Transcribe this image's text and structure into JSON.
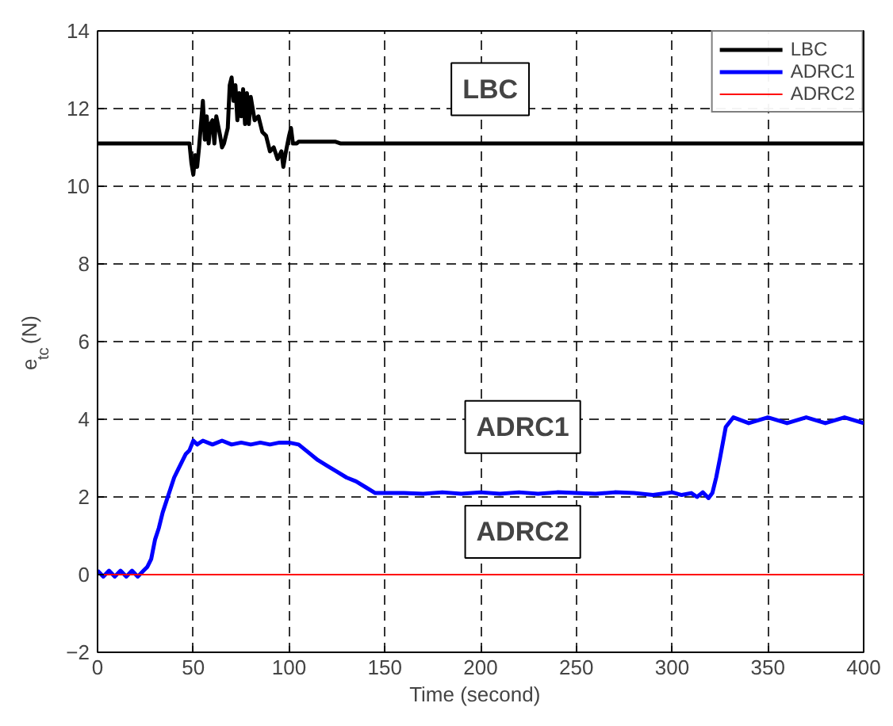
{
  "chart_data": {
    "type": "line",
    "xlabel": "Time   (second)",
    "ylabel": "e$_{tc}$   (N)",
    "xlim": [
      0,
      400
    ],
    "ylim": [
      -2,
      14
    ],
    "xticks": [
      0,
      50,
      100,
      150,
      200,
      250,
      300,
      350,
      400
    ],
    "yticks": [
      -2,
      0,
      2,
      4,
      6,
      8,
      10,
      12,
      14
    ],
    "grid": true,
    "legend": "top right",
    "line_style": "solid",
    "annotations": [
      "LBC",
      "ADRC1",
      "ADRC2"
    ],
    "series": [
      {
        "name": "LBC",
        "color": "#000000",
        "x": [
          0,
          48,
          49,
          50,
          51,
          52,
          53,
          55,
          56,
          57,
          58,
          59,
          60,
          61,
          62,
          64,
          65,
          66,
          68,
          69,
          70,
          71,
          72,
          73,
          74,
          75,
          76,
          77,
          78,
          79,
          80,
          82,
          84,
          86,
          88,
          90,
          92,
          94,
          96,
          97,
          98,
          100,
          101,
          102,
          104,
          105,
          124,
          127,
          400
        ],
        "values": [
          11.1,
          11.1,
          10.6,
          10.3,
          10.8,
          10.5,
          11.0,
          12.2,
          11.2,
          11.8,
          11.1,
          11.6,
          11.7,
          11.1,
          11.8,
          11.3,
          11.0,
          11.1,
          11.5,
          12.6,
          12.8,
          12.2,
          12.6,
          11.7,
          12.4,
          11.8,
          12.5,
          11.6,
          12.4,
          11.6,
          12.3,
          11.7,
          11.8,
          11.4,
          11.3,
          10.9,
          11.0,
          10.7,
          10.9,
          10.5,
          10.8,
          11.3,
          11.5,
          11.1,
          11.1,
          11.15,
          11.15,
          11.1,
          11.1
        ]
      },
      {
        "name": "ADRC1",
        "color": "#0000ff",
        "x": [
          0,
          3,
          6,
          9,
          12,
          15,
          18,
          21,
          24,
          26,
          28,
          30,
          32,
          34,
          36,
          38,
          40,
          42,
          44,
          46,
          48,
          50,
          52,
          55,
          60,
          65,
          70,
          75,
          80,
          85,
          90,
          95,
          100,
          105,
          110,
          115,
          120,
          125,
          130,
          135,
          140,
          145,
          150,
          160,
          170,
          180,
          190,
          200,
          210,
          220,
          230,
          240,
          250,
          260,
          270,
          280,
          290,
          300,
          305,
          310,
          313,
          316,
          319,
          321,
          323,
          325,
          328,
          332,
          340,
          350,
          360,
          370,
          380,
          390,
          400
        ],
        "values": [
          0.1,
          -0.05,
          0.1,
          -0.05,
          0.1,
          -0.05,
          0.1,
          -0.05,
          0.1,
          0.2,
          0.4,
          0.9,
          1.2,
          1.6,
          1.9,
          2.2,
          2.5,
          2.7,
          2.9,
          3.1,
          3.2,
          3.45,
          3.35,
          3.45,
          3.35,
          3.45,
          3.35,
          3.4,
          3.35,
          3.4,
          3.35,
          3.4,
          3.4,
          3.35,
          3.15,
          2.95,
          2.8,
          2.65,
          2.5,
          2.4,
          2.25,
          2.1,
          2.1,
          2.1,
          2.08,
          2.12,
          2.08,
          2.12,
          2.08,
          2.12,
          2.08,
          2.12,
          2.1,
          2.08,
          2.12,
          2.1,
          2.05,
          2.12,
          2.05,
          2.1,
          2.0,
          2.12,
          1.97,
          2.1,
          2.5,
          3.0,
          3.8,
          4.05,
          3.9,
          4.05,
          3.9,
          4.05,
          3.9,
          4.05,
          3.9
        ]
      },
      {
        "name": "ADRC2",
        "color": "#ff0000",
        "x": [
          0,
          400
        ],
        "values": [
          0,
          0
        ]
      }
    ]
  }
}
